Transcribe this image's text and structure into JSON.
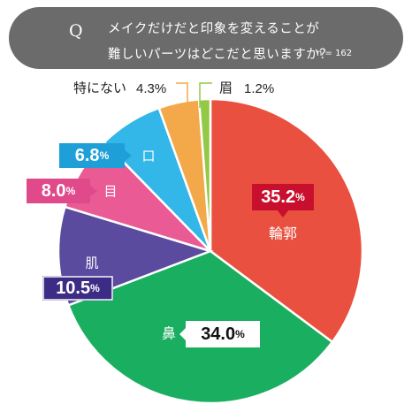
{
  "question": {
    "mark": "Q",
    "line1": "メイクだけだと印象を変えることが",
    "line2": "難しいパーツはどこだと思いますか？",
    "n": "n = 162"
  },
  "colors": {
    "header_bg": "#6b6b6b",
    "輪郭": "#e9503f",
    "鼻": "#1aae61",
    "肌": "#5a4b9e",
    "目": "#ea5a95",
    "口": "#33b6e8",
    "特にない": "#f3a94a",
    "眉": "#94c847"
  },
  "chart_data": {
    "type": "pie",
    "title": "",
    "slices": [
      {
        "label": "輪郭",
        "value": 35.2,
        "display": "35.2",
        "color": "#e9503f"
      },
      {
        "label": "鼻",
        "value": 34.0,
        "display": "34.0",
        "color": "#1aae61"
      },
      {
        "label": "肌",
        "value": 10.5,
        "display": "10.5",
        "color": "#5a4b9e"
      },
      {
        "label": "目",
        "value": 8.0,
        "display": "8.0",
        "color": "#ea5a95"
      },
      {
        "label": "口",
        "value": 6.8,
        "display": "6.8",
        "color": "#33b6e8"
      },
      {
        "label": "特にない",
        "value": 4.3,
        "display": "4.3",
        "color": "#f3a94a"
      },
      {
        "label": "眉",
        "value": 1.2,
        "display": "1.2",
        "color": "#94c847"
      }
    ],
    "unit": "%",
    "start": "12 o'clock, clockwise"
  }
}
